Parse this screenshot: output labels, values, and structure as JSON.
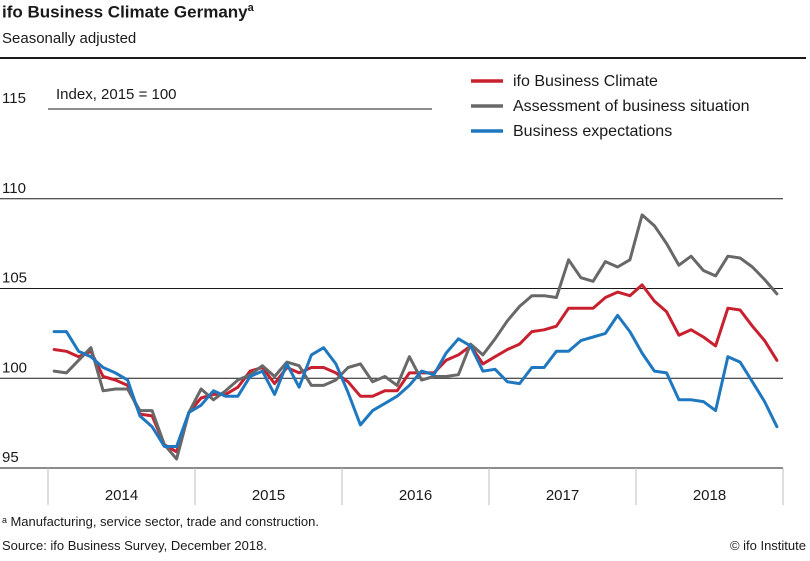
{
  "header": {
    "title": "ifo Business Climate Germany",
    "title_marker": "a",
    "subtitle": "Seasonally adjusted"
  },
  "footer": {
    "footnote": "ᵃ Manufacturing, service sector, trade and construction.",
    "source": "Source: ifo Business Survey, December 2018.",
    "credit": "© ifo Institute"
  },
  "chart_data": {
    "type": "line",
    "title": "ifo Business Climate Germany",
    "subtitle": "Seasonally adjusted",
    "ylabel": "Index, 2015 = 100",
    "ylim": [
      95,
      115
    ],
    "yticks": [
      95,
      100,
      105,
      110,
      115
    ],
    "xlim": [
      "2013-12",
      "2018-12"
    ],
    "years": [
      "2014",
      "2015",
      "2016",
      "2017",
      "2018"
    ],
    "grid": true,
    "legend_position": "top-right",
    "series": [
      {
        "name": "ifo Business Climate",
        "color": "#c8202f",
        "values": [
          101.6,
          101.5,
          101.2,
          101.5,
          100.1,
          99.9,
          99.6,
          98.0,
          97.9,
          96.3,
          95.9,
          98.1,
          98.9,
          99.1,
          99.1,
          99.5,
          100.4,
          100.6,
          99.7,
          100.6,
          100.3,
          100.6,
          100.6,
          100.3,
          99.8,
          99.0,
          99.0,
          99.3,
          99.3,
          100.3,
          100.3,
          100.3,
          101.0,
          101.3,
          101.8,
          100.8,
          101.2,
          101.6,
          101.9,
          102.6,
          102.7,
          102.9,
          103.9,
          103.9,
          103.9,
          104.5,
          104.8,
          104.6,
          105.2,
          104.3,
          103.7,
          102.4,
          102.7,
          102.3,
          101.8,
          103.9,
          103.8,
          102.9,
          102.1,
          101.0
        ]
      },
      {
        "name": "Assessment of business situation",
        "color": "#686868",
        "values": [
          100.4,
          100.3,
          101.0,
          101.7,
          99.3,
          99.4,
          99.4,
          98.2,
          98.2,
          96.3,
          95.5,
          98.1,
          99.4,
          98.8,
          99.3,
          99.9,
          100.2,
          100.7,
          100.1,
          100.9,
          100.7,
          99.6,
          99.6,
          99.9,
          100.6,
          100.8,
          99.8,
          100.1,
          99.6,
          101.2,
          99.9,
          100.1,
          100.1,
          100.2,
          101.9,
          101.3,
          102.2,
          103.2,
          104.0,
          104.6,
          104.6,
          104.5,
          106.6,
          105.6,
          105.4,
          106.5,
          106.2,
          106.6,
          109.1,
          108.5,
          107.5,
          106.3,
          106.8,
          106.0,
          105.7,
          106.8,
          106.7,
          106.2,
          105.5,
          104.7
        ]
      },
      {
        "name": "Business expectations",
        "color": "#1f78bf",
        "values": [
          102.6,
          102.6,
          101.5,
          101.2,
          100.6,
          100.3,
          99.9,
          97.9,
          97.3,
          96.2,
          96.2,
          98.1,
          98.5,
          99.3,
          99.0,
          99.0,
          100.1,
          100.4,
          99.1,
          100.8,
          99.5,
          101.3,
          101.7,
          100.8,
          99.2,
          97.4,
          98.2,
          98.6,
          99.0,
          99.6,
          100.4,
          100.2,
          101.4,
          102.2,
          101.8,
          100.4,
          100.5,
          99.8,
          99.7,
          100.6,
          100.6,
          101.5,
          101.5,
          102.1,
          102.3,
          102.5,
          103.5,
          102.6,
          101.4,
          100.4,
          100.3,
          98.8,
          98.8,
          98.7,
          98.2,
          101.2,
          100.9,
          99.8,
          98.7,
          97.3
        ]
      }
    ]
  }
}
